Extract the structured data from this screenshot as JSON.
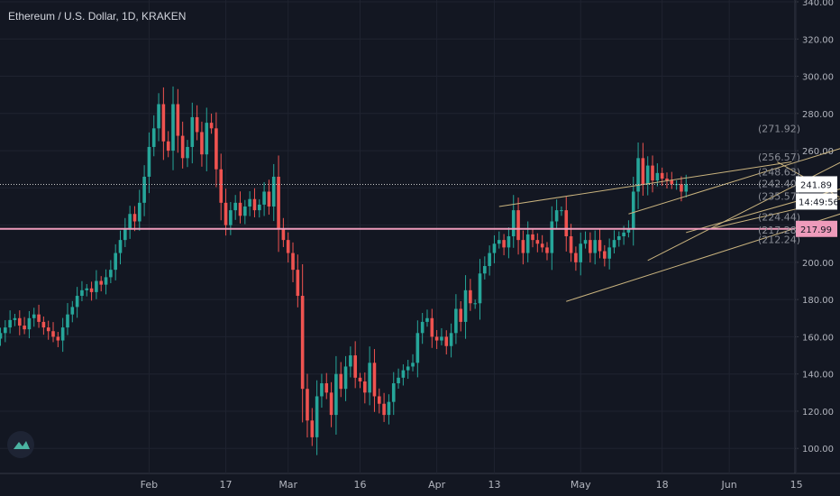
{
  "header": {
    "title": "Ethereum / U.S. Dollar, 1D, KRAKEN"
  },
  "chart_data": {
    "type": "candlestick",
    "symbol": "Ethereum / U.S. Dollar",
    "interval": "1D",
    "exchange": "KRAKEN",
    "ylim": [
      88,
      340
    ],
    "y_ticks": [
      "100.00",
      "120.00",
      "140.00",
      "160.00",
      "180.00",
      "200.00",
      "220.00",
      "240.00",
      "260.00",
      "280.00",
      "300.00",
      "320.00",
      "340.00"
    ],
    "x_ticks": [
      {
        "label": "Feb",
        "day": 31
      },
      {
        "label": "17",
        "day": 47
      },
      {
        "label": "Mar",
        "day": 60
      },
      {
        "label": "16",
        "day": 75
      },
      {
        "label": "Apr",
        "day": 91
      },
      {
        "label": "13",
        "day": 103
      },
      {
        "label": "May",
        "day": 121
      },
      {
        "label": "18",
        "day": 138
      },
      {
        "label": "Jun",
        "day": 152
      },
      {
        "label": "15",
        "day": 166
      }
    ],
    "candles_start_day": 0,
    "closes": [
      162,
      165,
      169,
      170,
      166,
      164,
      170,
      172,
      168,
      165,
      163,
      160,
      158,
      165,
      172,
      176,
      182,
      185,
      186,
      184,
      190,
      188,
      192,
      196,
      205,
      212,
      218,
      226,
      222,
      232,
      246,
      262,
      272,
      285,
      265,
      260,
      285,
      268,
      256,
      262,
      278,
      270,
      258,
      275,
      272,
      250,
      232,
      220,
      228,
      232,
      225,
      230,
      234,
      228,
      231,
      238,
      230,
      246,
      218,
      212,
      205,
      196,
      182,
      132,
      115,
      106,
      128,
      135,
      130,
      118,
      140,
      132,
      144,
      150,
      138,
      136,
      130,
      146,
      128,
      124,
      118,
      125,
      135,
      138,
      142,
      144,
      146,
      162,
      168,
      170,
      160,
      158,
      160,
      155,
      162,
      175,
      168,
      185,
      178,
      178,
      194,
      198,
      205,
      210,
      212,
      208,
      214,
      228,
      212,
      205,
      215,
      212,
      210,
      208,
      205,
      222,
      228,
      228,
      214,
      205,
      200,
      210,
      212,
      205,
      212,
      206,
      202,
      208,
      212,
      214,
      216,
      218,
      238,
      256,
      242,
      252,
      244,
      248,
      245,
      244,
      242,
      242,
      238,
      241.89
    ],
    "price_lines": [
      {
        "label": "241.89",
        "value": 241.89,
        "color": "#c8c8c8",
        "style": "dotted"
      },
      {
        "label": "217.99",
        "value": 217.99,
        "color": "#ee9bbb",
        "style": "solid"
      }
    ],
    "countdown_label": "14:49:56",
    "fib_levels": [
      "(271.92)",
      "(256.57)",
      "(248.63)",
      "(242.40)",
      "(235.57)",
      "(224.44)",
      "(217.28)",
      "(212.24)"
    ],
    "fib_values": [
      271.92,
      256.57,
      248.63,
      242.4,
      235.57,
      224.44,
      217.28,
      212.24
    ],
    "trendlines": [
      {
        "d1": 131,
        "p1": 226,
        "d2": 180,
        "p2": 265
      },
      {
        "d1": 143,
        "p1": 216,
        "d2": 180,
        "p2": 243
      },
      {
        "d1": 118,
        "p1": 179,
        "d2": 180,
        "p2": 230
      },
      {
        "d1": 135,
        "p1": 201,
        "d2": 180,
        "p2": 260
      },
      {
        "d1": 104,
        "p1": 230,
        "d2": 165,
        "p2": 254
      },
      {
        "d1": 148,
        "p1": 218,
        "d2": 180,
        "p2": 237
      },
      {
        "d1": 162,
        "p1": 254,
        "d2": 175,
        "p2": 235
      }
    ],
    "colors": {
      "up": "#26a69a",
      "down": "#ef5350",
      "grid": "#1f2330",
      "axis_text": "#b2b5be",
      "trend": "#c9b37e"
    }
  }
}
